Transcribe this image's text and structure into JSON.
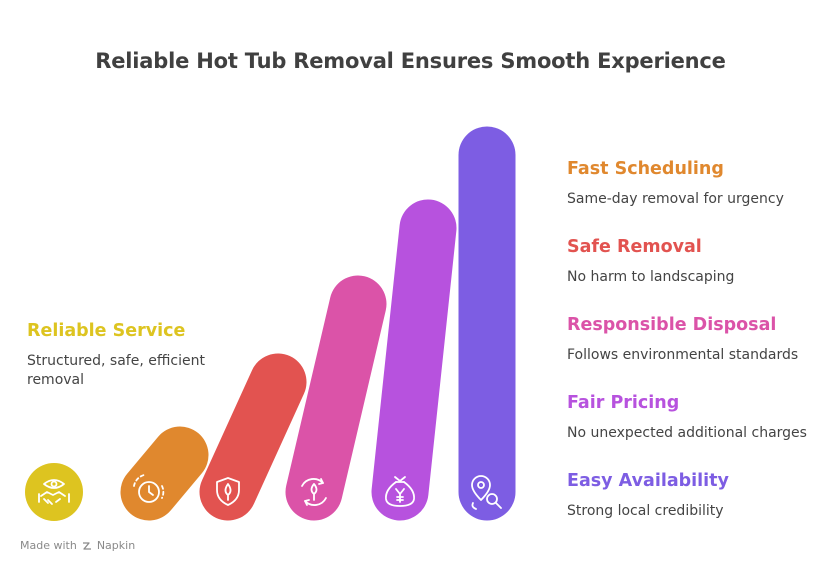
{
  "title": "Reliable Hot Tub Removal Ensures Smooth Experience",
  "left_item": {
    "heading": "Reliable Service",
    "description": "Structured, safe, efficient removal",
    "color": "#ddc420",
    "icon": "handshake-icon"
  },
  "items": [
    {
      "heading": "Fast Scheduling",
      "description": "Same-day removal for urgency",
      "color": "#e0882e",
      "icon": "clock-icon"
    },
    {
      "heading": "Safe Removal",
      "description": "No harm to landscaping",
      "color": "#e25350",
      "icon": "leaf-shield-icon"
    },
    {
      "heading": "Responsible Disposal",
      "description": "Follows environmental standards",
      "color": "#db53a8",
      "icon": "recycle-leaf-icon"
    },
    {
      "heading": "Fair Pricing",
      "description": "No unexpected additional charges",
      "color": "#b752de",
      "icon": "money-bag-icon"
    },
    {
      "heading": "Easy Availability",
      "description": "Strong local credibility",
      "color": "#7d5de3",
      "icon": "location-search-icon"
    }
  ],
  "footer": {
    "text": "Made with",
    "brand": "Napkin"
  }
}
